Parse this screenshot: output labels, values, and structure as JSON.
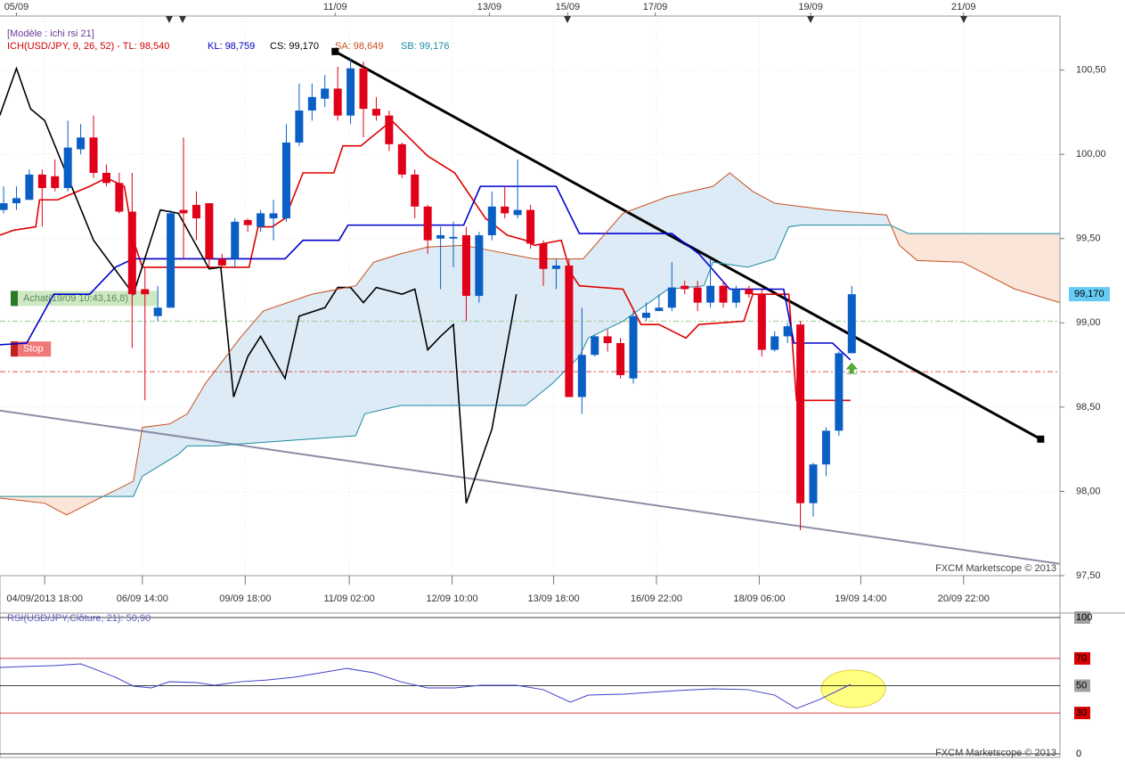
{
  "header": {
    "template": "[Modèle : ichi rsi 21]",
    "legend": [
      "ICH(USD/JPY, 9, 26, 52) -  TL: 98,540",
      "KL: 98,759",
      "CS: 99,170",
      "SA: 98,649",
      "SB: 99,176"
    ]
  },
  "chart_data": [
    {
      "type": "candlestick",
      "up_color": "#0a5fc4",
      "down_color": "#e0001a",
      "grid": true,
      "xlim": [
        -0.28,
        82.2
      ],
      "ylim": [
        97.5,
        100.81
      ],
      "yticks": [
        {
          "value": 97.5,
          "label": "97,50"
        },
        {
          "value": 98,
          "label": "98,00"
        },
        {
          "value": 98.5,
          "label": "98,50"
        },
        {
          "value": 99,
          "label": "99,00"
        },
        {
          "value": 99.5,
          "label": "99,50"
        },
        {
          "value": 100,
          "label": "100,00"
        },
        {
          "value": 100.5,
          "label": "100,50"
        }
      ],
      "xticks": [
        {
          "value": 3.2,
          "label": "04/09/2013 18:00"
        },
        {
          "value": 10.8,
          "label": "06/09 14:00"
        },
        {
          "value": 18.8,
          "label": "09/09 18:00"
        },
        {
          "value": 26.9,
          "label": "11/09 02:00"
        },
        {
          "value": 34.9,
          "label": "12/09 10:00"
        },
        {
          "value": 42.8,
          "label": "13/09 18:00"
        },
        {
          "value": 50.8,
          "label": "16/09 22:00"
        },
        {
          "value": 58.8,
          "label": "18/09 06:00"
        },
        {
          "value": 66.7,
          "label": "19/09 14:00"
        },
        {
          "value": 74.7,
          "label": "20/09 22:00"
        }
      ],
      "top_ticks": [
        {
          "value": 1.0,
          "label": "05/09"
        },
        {
          "value": 25.8,
          "label": "11/09"
        },
        {
          "value": 37.8,
          "label": "13/09"
        },
        {
          "value": 43.9,
          "label": "15/09"
        },
        {
          "value": 50.7,
          "label": "17/09"
        },
        {
          "value": 62.8,
          "label": "19/09"
        },
        {
          "value": 74.7,
          "label": "21/09"
        }
      ],
      "open": [
        99.67,
        99.71,
        99.73,
        99.88,
        99.87,
        99.8,
        100.03,
        100.1,
        99.89,
        99.83,
        99.66,
        99.2,
        99.04,
        99.09,
        99.67,
        99.7,
        99.71,
        99.38,
        99.38,
        99.61,
        99.57,
        99.62,
        99.62,
        100.07,
        100.26,
        100.33,
        100.39,
        100.23,
        100.51,
        100.27,
        100.23,
        100.06,
        99.88,
        99.69,
        99.5,
        99.5,
        99.52,
        99.16,
        99.52,
        99.69,
        99.64,
        99.67,
        99.47,
        99.32,
        99.34,
        98.56,
        98.81,
        98.92,
        98.88,
        98.67,
        99.03,
        99.07,
        99.09,
        99.22,
        99.21,
        99.12,
        99.22,
        99.12,
        99.2,
        99.17,
        98.84,
        98.92,
        98.99,
        97.93,
        98.16,
        98.36,
        98.82
      ],
      "high": [
        99.81,
        99.81,
        99.91,
        99.91,
        99.97,
        100.2,
        100.18,
        100.23,
        99.94,
        99.89,
        99.89,
        99.33,
        99.22,
        99.67,
        100.1,
        99.78,
        99.71,
        99.41,
        99.62,
        99.62,
        99.67,
        99.73,
        100.18,
        100.42,
        100.42,
        100.47,
        100.52,
        100.57,
        100.55,
        100.34,
        100.26,
        100.07,
        99.91,
        99.7,
        99.57,
        99.6,
        99.57,
        99.54,
        99.78,
        99.81,
        99.97,
        99.7,
        99.49,
        99.38,
        99.38,
        99.09,
        98.93,
        98.96,
        98.91,
        99.07,
        99.12,
        99.17,
        99.36,
        99.25,
        99.25,
        99.38,
        99.25,
        99.22,
        99.22,
        99.2,
        98.95,
        99.0,
        99.01,
        98.17,
        98.38,
        98.83,
        99.22
      ],
      "low": [
        99.65,
        99.67,
        99.73,
        99.57,
        99.78,
        99.78,
        100.0,
        99.86,
        99.81,
        99.65,
        98.85,
        98.54,
        99.01,
        99.09,
        99.38,
        99.49,
        99.33,
        99.33,
        99.33,
        99.54,
        99.54,
        99.49,
        99.6,
        100.05,
        100.2,
        100.28,
        100.2,
        100.18,
        100.1,
        100.2,
        100.02,
        99.86,
        99.62,
        99.41,
        99.2,
        99.33,
        99.01,
        99.12,
        99.49,
        99.62,
        99.62,
        99.44,
        99.22,
        99.2,
        98.56,
        98.46,
        98.8,
        98.83,
        98.67,
        98.64,
        99.01,
        99.07,
        99.07,
        99.17,
        99.07,
        99.09,
        99.09,
        99.09,
        99.15,
        98.8,
        98.83,
        98.88,
        97.77,
        97.85,
        98.09,
        98.33,
        98.82
      ],
      "close": [
        99.71,
        99.74,
        99.88,
        99.8,
        99.8,
        100.04,
        100.1,
        99.89,
        99.83,
        99.66,
        99.17,
        99.17,
        99.09,
        99.65,
        99.65,
        99.62,
        99.38,
        99.34,
        99.6,
        99.58,
        99.65,
        99.65,
        100.07,
        100.26,
        100.34,
        100.39,
        100.23,
        100.51,
        100.27,
        100.23,
        100.06,
        99.88,
        99.69,
        99.49,
        99.52,
        99.51,
        99.16,
        99.52,
        99.69,
        99.65,
        99.67,
        99.47,
        99.32,
        99.34,
        98.56,
        98.81,
        98.92,
        98.88,
        98.69,
        99.04,
        99.06,
        99.09,
        99.21,
        99.2,
        99.12,
        99.22,
        99.12,
        99.2,
        99.17,
        98.84,
        98.92,
        98.98,
        97.93,
        98.16,
        98.36,
        98.82,
        99.17
      ],
      "lines": [
        {
          "color": "#e00000",
          "x": [
            -0.3,
            0.8,
            2.5,
            2.8,
            4.2,
            6.7,
            8.0,
            9.4,
            10.1,
            10.8,
            19.1,
            19.8,
            20.9,
            21.9,
            23.3,
            25.7,
            26.4,
            27.8,
            30.2,
            33.0,
            35.1,
            37.5,
            39.2,
            40.6,
            41.3,
            43.4,
            44.1,
            44.8,
            48.2,
            49.6,
            51.0,
            53.1,
            54.1,
            57.6,
            58.3,
            61.1,
            61.7,
            65.9
          ],
          "values": [
            99.52,
            99.55,
            99.57,
            99.73,
            99.73,
            99.81,
            99.86,
            99.81,
            99.49,
            99.33,
            99.33,
            99.57,
            99.57,
            99.62,
            99.89,
            99.89,
            100.05,
            100.05,
            100.2,
            99.99,
            99.89,
            99.62,
            99.52,
            99.49,
            99.46,
            99.49,
            99.3,
            99.22,
            99.2,
            98.99,
            98.99,
            98.91,
            98.99,
            99.01,
            99.17,
            99.17,
            98.54,
            98.54
          ]
        },
        {
          "color": "#0000d0",
          "x": [
            -0.3,
            1.8,
            3.9,
            6.7,
            8.7,
            10.1,
            21.9,
            23.3,
            26.1,
            26.8,
            35.8,
            37.1,
            43.0,
            44.8,
            52.0,
            54.1,
            56.5,
            60.7,
            61.5,
            64.5,
            65.9
          ],
          "values": [
            98.87,
            98.88,
            99.17,
            99.17,
            99.33,
            99.38,
            99.38,
            99.49,
            99.49,
            99.58,
            99.58,
            99.81,
            99.81,
            99.53,
            99.53,
            99.41,
            99.2,
            99.2,
            98.88,
            98.88,
            98.78
          ]
        },
        {
          "color": "#000000",
          "x": [
            -0.3,
            1.0,
            2.1,
            3.2,
            7.0,
            10.1,
            12.2,
            13.6,
            16.0,
            16.9,
            17.9,
            19.0,
            20.0,
            21.9,
            23.0,
            25.0,
            26.0,
            27.0,
            28.0,
            29.0,
            31.0,
            32.0,
            33.0,
            34.0,
            35.0,
            36.0,
            38.0,
            39.9
          ],
          "values": [
            100.23,
            100.51,
            100.27,
            100.2,
            99.49,
            99.17,
            99.67,
            99.65,
            99.32,
            99.33,
            98.56,
            98.8,
            98.92,
            98.67,
            99.04,
            99.09,
            99.21,
            99.21,
            99.12,
            99.21,
            99.17,
            99.2,
            98.84,
            98.92,
            98.99,
            97.93,
            98.37,
            99.17
          ]
        },
        {
          "color": "#c8501e",
          "x": [
            -0.3,
            3.2,
            4.9,
            6.7,
            10.1,
            10.8,
            12.9,
            14.3,
            15.7,
            18.4,
            20.2,
            24.0,
            27.4,
            28.8,
            30.9,
            33.0,
            35.8,
            41.3,
            45.1,
            48.2,
            51.7,
            55.2,
            56.5,
            58.3,
            60.0,
            64.2,
            68.7,
            69.7,
            71.1,
            74.6,
            78.7,
            82.2
          ],
          "values": [
            97.96,
            97.93,
            97.86,
            97.93,
            98.06,
            98.38,
            98.4,
            98.46,
            98.64,
            98.91,
            99.07,
            99.17,
            99.22,
            99.36,
            99.41,
            99.45,
            99.46,
            99.38,
            99.38,
            99.65,
            99.75,
            99.81,
            99.89,
            99.78,
            99.71,
            99.67,
            99.64,
            99.46,
            99.37,
            99.36,
            99.2,
            99.12
          ]
        },
        {
          "color": "#1a8aa0",
          "x": [
            -0.3,
            10.1,
            10.8,
            13.6,
            14.3,
            16.4,
            27.4,
            28.1,
            30.9,
            40.6,
            42.7,
            44.8,
            45.5,
            48.2,
            51.7,
            54.5,
            55.2,
            57.9,
            60.0,
            61.1,
            62.1,
            69.0,
            70.4,
            82.2
          ],
          "values": [
            97.97,
            97.97,
            98.09,
            98.22,
            98.27,
            98.27,
            98.33,
            98.46,
            98.51,
            98.51,
            98.64,
            98.8,
            98.91,
            99.01,
            99.2,
            99.22,
            99.36,
            99.33,
            99.38,
            99.57,
            99.58,
            99.58,
            99.53,
            99.53
          ]
        }
      ],
      "trendlines": [
        {
          "color": "#000000",
          "x": [
            25.8,
            80.7
          ],
          "values": [
            100.61,
            98.31
          ]
        },
        {
          "color": "#8a8ea8",
          "x": [
            -0.3,
            82.2
          ],
          "values": [
            98.48,
            97.57
          ]
        }
      ],
      "levels": [
        {
          "label": "Achat(19/09 10:43,16,8)",
          "value": 99.01,
          "color": "#9ccc8c"
        },
        {
          "label": "Stop",
          "value": 98.71,
          "color": "#e05050"
        }
      ],
      "price_label": {
        "value": 99.17,
        "label": "99,170"
      },
      "watermark": "FXCM Marketscope © 2013"
    },
    {
      "type": "line",
      "title": "RSI(USD/JPY,Clôture, 21): 50,90",
      "color": "#4040c8",
      "xlim": [
        -0.28,
        82.2
      ],
      "ylim": [
        0,
        100
      ],
      "yticks": [
        100,
        70,
        50,
        30,
        0
      ],
      "line_colors": [
        "#000000",
        "#cc0000",
        "#000000",
        "#cc0000",
        "#000000"
      ],
      "x": [
        -0.3,
        1.8,
        3.9,
        6.0,
        7.3,
        8.7,
        10.1,
        11.5,
        12.9,
        15.0,
        16.4,
        18.4,
        20.5,
        22.6,
        24.7,
        26.7,
        28.8,
        30.9,
        33.0,
        35.1,
        37.1,
        39.9,
        42.0,
        44.1,
        45.5,
        48.2,
        50.3,
        52.4,
        55.2,
        57.9,
        60.0,
        61.7,
        63.5,
        65.9
      ],
      "values": [
        63.4,
        64.1,
        64.7,
        66.0,
        61.4,
        56.2,
        49.7,
        48.4,
        52.9,
        52.3,
        50.3,
        52.9,
        54.2,
        56.2,
        59.5,
        62.7,
        59.5,
        52.9,
        48.4,
        48.4,
        50.3,
        50.3,
        47.1,
        37.9,
        43.1,
        43.8,
        45.1,
        46.4,
        47.7,
        47.1,
        43.1,
        33.3,
        39.9,
        50.9
      ],
      "watermark": "FXCM Marketscope © 2013"
    }
  ]
}
